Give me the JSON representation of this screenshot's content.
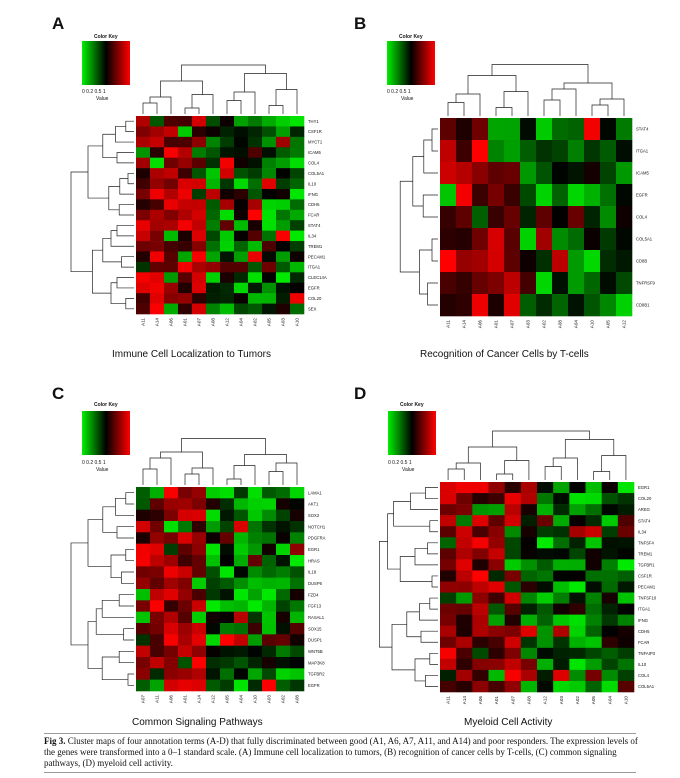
{
  "panels": [
    {
      "letter": "A",
      "title": "Immune Cell Localization to Tumors",
      "colorkey": {
        "title": "Color Key",
        "ticks": "0  0.2    0.5    1",
        "value_label": "Value"
      },
      "rows": [
        "THY1",
        "CSF1R",
        "MYCT1",
        "ICAM5",
        "COL4",
        "COL5A1",
        "IL10",
        "IFNG",
        "CDH5",
        "FCAR",
        "STAT4",
        "IL34",
        "TREM1",
        "PECAM1",
        "ITGA1",
        "CLEC14A",
        "EGFR",
        "COL20",
        "SEX"
      ],
      "cols": [
        "A11",
        "A14",
        "A06",
        "A01",
        "A07",
        "A08",
        "A12",
        "A04",
        "A02",
        "A05",
        "A03",
        "A10"
      ]
    },
    {
      "letter": "B",
      "title": "Recognition of Cancer Cells by T-cells",
      "colorkey": {
        "title": "Color Key",
        "ticks": "0  0.2    0.5    1",
        "value_label": "Value"
      },
      "rows": [
        "STAT4",
        "ITGA1",
        "ICAM5",
        "EGFR",
        "COL4",
        "COL5A1",
        "CD8B",
        "TNFRSF9",
        "CD8B1"
      ],
      "cols": [
        "A11",
        "A14",
        "A06",
        "A01",
        "A07",
        "A03",
        "A02",
        "A08",
        "A04",
        "A10",
        "A05",
        "A12"
      ]
    },
    {
      "letter": "C",
      "title": "Common Signaling Pathways",
      "colorkey": {
        "title": "Color Key",
        "ticks": "0   0.2    0.5    1",
        "value_label": "Value"
      },
      "rows": [
        "LAMA1",
        "AKT1",
        "SOX2",
        "NOTCH1",
        "PDGFRA",
        "EGR1",
        "HRAS",
        "IL18",
        "DUSP6",
        "FZD4",
        "FGF13",
        "RASAL1",
        "SOX15",
        "DUSP1",
        "WNT5B",
        "MAP3K8",
        "TGFBR2",
        "EGFR"
      ],
      "cols": [
        "A07",
        "A11",
        "A06",
        "A01",
        "A14",
        "A12",
        "A05",
        "A04",
        "A10",
        "A03",
        "A02",
        "A08"
      ]
    },
    {
      "letter": "D",
      "title": "Myeloid Cell Activity",
      "colorkey": {
        "title": "Color Key",
        "ticks": "0  0.2    0.5   1",
        "value_label": "Value"
      },
      "rows": [
        "EGR1",
        "COL20",
        "AREG",
        "STAT4",
        "IL34",
        "TNFSF4",
        "TREM1",
        "TGFBR1",
        "CSF1R",
        "PECAM1",
        "TNFSF10",
        "ITGA1",
        "IFNG",
        "CDH5",
        "FCAR",
        "TNFAIP3",
        "IL10",
        "COL4",
        "COL5A1"
      ],
      "cols": [
        "A11",
        "A14",
        "A06",
        "A01",
        "A07",
        "A08",
        "A12",
        "A03",
        "A02",
        "A05",
        "A04",
        "A10"
      ]
    }
  ],
  "caption": {
    "label": "Fig 3.",
    "text": "Cluster maps of four annotation terms (A-D) that fully discriminated between good (A1, A6, A7, A11, and A14) and poor responders. The expression levels of the genes were transformed into a 0–1 standard scale. (A) Immune cell localization to tumors, (B) recognition of cancer cells by T-cells, (C) common signaling pathways, (D) myeloid cell activity."
  },
  "colors": {
    "low": "#00ee00",
    "mid": "#000000",
    "high": "#ff0000"
  }
}
